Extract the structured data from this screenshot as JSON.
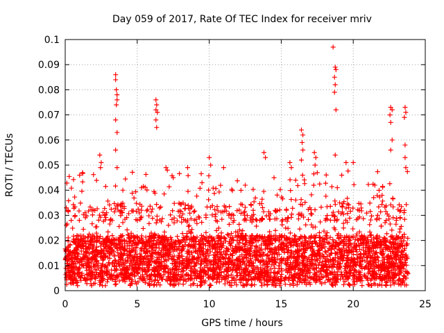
{
  "chart_data": {
    "type": "scatter",
    "title": "Day 059 of 2017, Rate Of TEC Index for receiver mriv",
    "xlabel": "GPS time / hours",
    "ylabel": "ROTI / TECUs",
    "xlim": [
      0,
      25
    ],
    "ylim": [
      0,
      0.1
    ],
    "xticks": [
      0,
      5,
      10,
      15,
      20,
      25
    ],
    "yticks": [
      0,
      0.01,
      0.02,
      0.03,
      0.04,
      0.05,
      0.06,
      0.07,
      0.08,
      0.09,
      0.1
    ],
    "xtick_labels": [
      "0",
      "5",
      "10",
      "15",
      "20",
      "25"
    ],
    "ytick_labels": [
      "0",
      "0.01",
      "0.02",
      "0.03",
      "0.04",
      "0.05",
      "0.06",
      "0.07",
      "0.08",
      "0.09",
      "0.1"
    ],
    "grid": true,
    "marker": "plus",
    "color": "#ff0000",
    "series": [
      {
        "name": "ROTI",
        "points": [
          [
            3.5,
            0.086
          ],
          [
            3.5,
            0.084
          ],
          [
            3.55,
            0.08
          ],
          [
            3.6,
            0.078
          ],
          [
            3.6,
            0.076
          ],
          [
            3.55,
            0.074
          ],
          [
            3.5,
            0.068
          ],
          [
            3.6,
            0.063
          ],
          [
            3.5,
            0.056
          ],
          [
            3.6,
            0.049
          ],
          [
            6.3,
            0.076
          ],
          [
            6.35,
            0.074
          ],
          [
            6.3,
            0.072
          ],
          [
            6.4,
            0.071
          ],
          [
            6.3,
            0.068
          ],
          [
            6.35,
            0.065
          ],
          [
            18.6,
            0.097
          ],
          [
            18.75,
            0.089
          ],
          [
            18.8,
            0.088
          ],
          [
            18.7,
            0.085
          ],
          [
            18.75,
            0.082
          ],
          [
            18.7,
            0.079
          ],
          [
            18.8,
            0.072
          ],
          [
            18.75,
            0.054
          ],
          [
            22.6,
            0.073
          ],
          [
            22.7,
            0.072
          ],
          [
            22.55,
            0.07
          ],
          [
            22.6,
            0.067
          ],
          [
            22.7,
            0.06
          ],
          [
            22.6,
            0.056
          ],
          [
            23.6,
            0.073
          ],
          [
            23.65,
            0.071
          ],
          [
            23.55,
            0.069
          ],
          [
            23.6,
            0.058
          ],
          [
            23.6,
            0.053
          ],
          [
            23.65,
            0.049
          ],
          [
            16.4,
            0.064
          ],
          [
            16.5,
            0.062
          ],
          [
            16.45,
            0.059
          ],
          [
            16.5,
            0.056
          ],
          [
            16.4,
            0.052
          ],
          [
            17.3,
            0.055
          ],
          [
            17.4,
            0.053
          ],
          [
            17.35,
            0.05
          ],
          [
            17.5,
            0.047
          ],
          [
            2.4,
            0.054
          ],
          [
            2.5,
            0.051
          ],
          [
            2.45,
            0.049
          ],
          [
            13.8,
            0.055
          ],
          [
            13.9,
            0.053
          ],
          [
            15.6,
            0.051
          ],
          [
            15.7,
            0.049
          ],
          [
            10.0,
            0.053
          ],
          [
            10.1,
            0.05
          ],
          [
            11.0,
            0.049
          ],
          [
            8.5,
            0.049
          ],
          [
            7.0,
            0.049
          ],
          [
            19.5,
            0.051
          ],
          [
            20.0,
            0.051
          ],
          [
            0.2,
            0.032
          ],
          [
            1.0,
            0.046
          ],
          [
            1.2,
            0.047
          ],
          [
            4.0,
            0.04
          ],
          [
            5.3,
            0.041
          ],
          [
            7.5,
            0.045
          ],
          [
            9.5,
            0.043
          ],
          [
            12.5,
            0.042
          ],
          [
            14.5,
            0.045
          ],
          [
            16.0,
            0.044
          ],
          [
            19.2,
            0.046
          ],
          [
            21.5,
            0.042
          ],
          [
            22.0,
            0.038
          ]
        ]
      }
    ],
    "dense_bands": [
      {
        "x_from": 0,
        "x_to": 23.8,
        "y_low": 0.004,
        "y_high": 0.022
      },
      {
        "x_from": 0,
        "x_to": 23.8,
        "y_low": 0.002,
        "y_high": 0.035
      }
    ]
  }
}
